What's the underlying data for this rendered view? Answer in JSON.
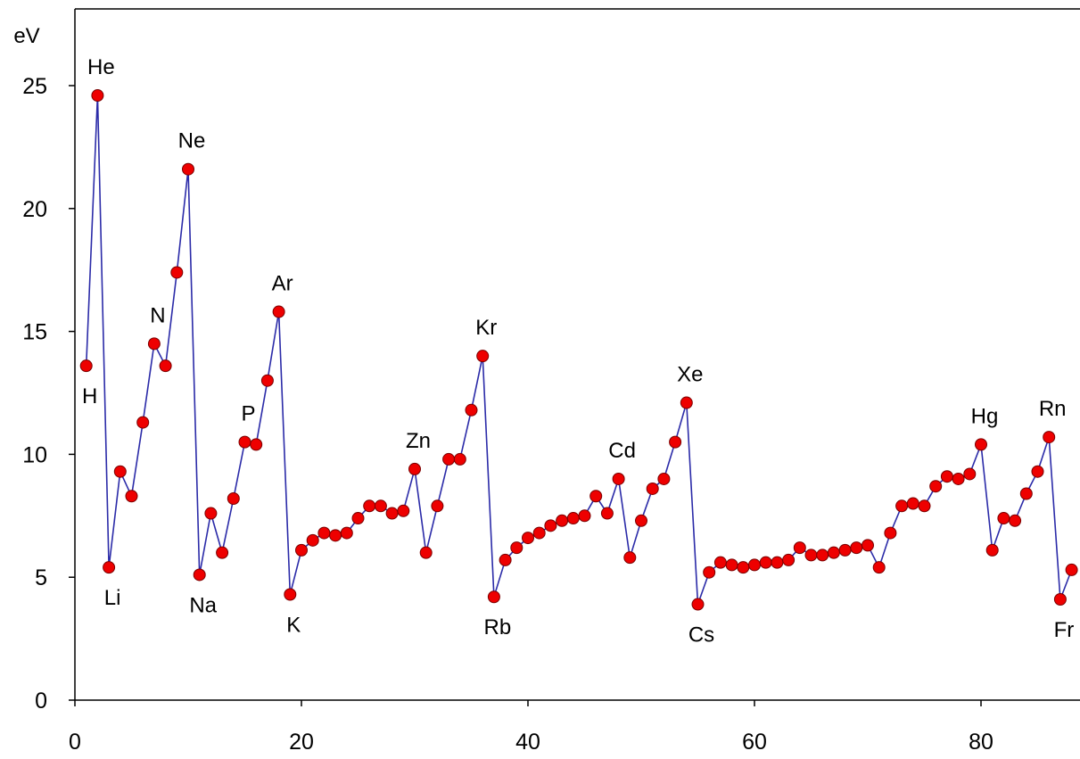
{
  "chart_data": {
    "type": "scatter",
    "title": "",
    "xlabel": "",
    "ylabel": "eV",
    "xlim": [
      0,
      88
    ],
    "ylim": [
      0,
      28
    ],
    "grid": false,
    "xticks": [
      0,
      20,
      40,
      60,
      80
    ],
    "yticks": [
      0,
      5,
      10,
      15,
      20,
      25
    ],
    "line_color": "#2b2ba8",
    "marker_color": "#ee0000",
    "marker_edge": "#7a0000",
    "series": [
      {
        "x": [
          1,
          2,
          3,
          4,
          5,
          6,
          7,
          8,
          9,
          10,
          11,
          12,
          13,
          14,
          15,
          16,
          17,
          18,
          19,
          20,
          21,
          22,
          23,
          24,
          25,
          26,
          27,
          28,
          29,
          30,
          31,
          32,
          33,
          34,
          35,
          36,
          37,
          38,
          39,
          40,
          41,
          42,
          43,
          44,
          45,
          46,
          47,
          48,
          49,
          50,
          51,
          52,
          53,
          54,
          55,
          56,
          57,
          58,
          59,
          60,
          61,
          62,
          63,
          64,
          65,
          66,
          67,
          68,
          69,
          70,
          71,
          72,
          73,
          74,
          75,
          76,
          77,
          78,
          79,
          80,
          81,
          82,
          83,
          84,
          85,
          86,
          87,
          88
        ],
        "values": [
          13.6,
          24.6,
          5.4,
          9.3,
          8.3,
          11.3,
          14.5,
          13.6,
          17.4,
          21.6,
          5.1,
          7.6,
          6.0,
          8.2,
          10.5,
          10.4,
          13.0,
          15.8,
          4.3,
          6.1,
          6.5,
          6.8,
          6.7,
          6.8,
          7.4,
          7.9,
          7.9,
          7.6,
          7.7,
          9.4,
          6.0,
          7.9,
          9.8,
          9.8,
          11.8,
          14.0,
          4.2,
          5.7,
          6.2,
          6.6,
          6.8,
          7.1,
          7.3,
          7.4,
          7.5,
          8.3,
          7.6,
          9.0,
          5.8,
          7.3,
          8.6,
          9.0,
          10.5,
          12.1,
          3.9,
          5.2,
          5.6,
          5.5,
          5.4,
          5.5,
          5.6,
          5.6,
          5.7,
          6.2,
          5.9,
          5.9,
          6.0,
          6.1,
          6.2,
          6.3,
          5.4,
          6.8,
          7.9,
          8.0,
          7.9,
          8.7,
          9.1,
          9.0,
          9.2,
          10.4,
          6.1,
          7.4,
          7.3,
          8.4,
          9.3,
          10.7,
          4.1,
          5.3
        ]
      }
    ],
    "annotations": [
      {
        "text": "H",
        "x": 1,
        "y": 13.6,
        "pos": "below"
      },
      {
        "text": "He",
        "x": 2,
        "y": 24.6,
        "pos": "above"
      },
      {
        "text": "Li",
        "x": 3,
        "y": 5.4,
        "pos": "below"
      },
      {
        "text": "N",
        "x": 7,
        "y": 14.5,
        "pos": "above"
      },
      {
        "text": "Ne",
        "x": 10,
        "y": 21.6,
        "pos": "above"
      },
      {
        "text": "Na",
        "x": 11,
        "y": 5.1,
        "pos": "below"
      },
      {
        "text": "P",
        "x": 15,
        "y": 10.5,
        "pos": "above"
      },
      {
        "text": "Ar",
        "x": 18,
        "y": 15.8,
        "pos": "above"
      },
      {
        "text": "K",
        "x": 19,
        "y": 4.3,
        "pos": "below"
      },
      {
        "text": "Zn",
        "x": 30,
        "y": 9.4,
        "pos": "above"
      },
      {
        "text": "Kr",
        "x": 36,
        "y": 14.0,
        "pos": "above"
      },
      {
        "text": "Rb",
        "x": 37,
        "y": 4.2,
        "pos": "below"
      },
      {
        "text": "Cd",
        "x": 48,
        "y": 9.0,
        "pos": "above"
      },
      {
        "text": "Xe",
        "x": 54,
        "y": 12.1,
        "pos": "above"
      },
      {
        "text": "Cs",
        "x": 55,
        "y": 3.9,
        "pos": "below"
      },
      {
        "text": "Hg",
        "x": 80,
        "y": 10.4,
        "pos": "above"
      },
      {
        "text": "Rn",
        "x": 86,
        "y": 10.7,
        "pos": "above"
      },
      {
        "text": "Fr",
        "x": 87,
        "y": 4.1,
        "pos": "below"
      }
    ]
  }
}
